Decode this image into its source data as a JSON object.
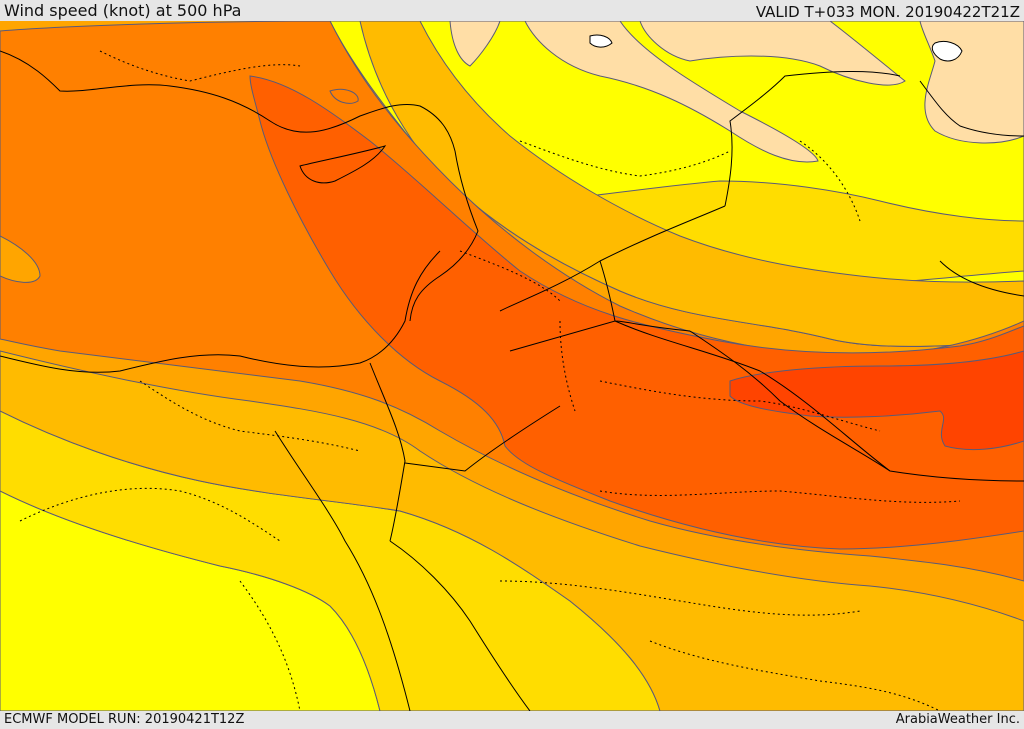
{
  "header": {
    "title": "Wind speed (knot) at 500 hPa",
    "valid": "VALID T+033 MON. 20190422T21Z"
  },
  "footer": {
    "model_run": "ECMWF MODEL RUN: 20190421T12Z",
    "credit": "ArabiaWeather Inc."
  },
  "palette": {
    "band_pale": "#ffdea6",
    "band_yellow": "#ffff00",
    "band_gold": "#ffdd00",
    "band_amber": "#ffbb00",
    "band_orange": "#ffa500",
    "band_dark_orange": "#ff8000",
    "band_red_orange": "#ff6000",
    "band_red": "#ff4400",
    "contour_line": "#5a5a78",
    "border_line": "#000000"
  },
  "icons": {
    "map": "wind-speed-contour-map"
  }
}
